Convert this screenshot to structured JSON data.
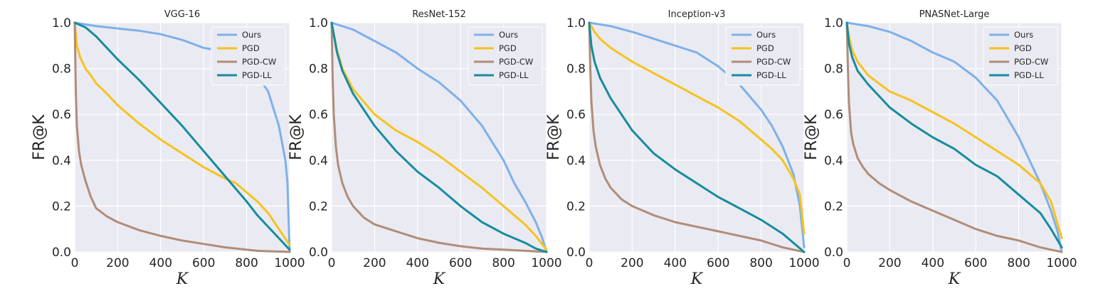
{
  "chart_data": [
    {
      "type": "line",
      "title": "VGG-16",
      "xlabel": "K",
      "ylabel": "FR@K",
      "xlim": [
        0,
        1000
      ],
      "ylim": [
        0.0,
        1.0
      ],
      "xticks": [
        "0",
        "200",
        "400",
        "600",
        "800",
        "1000"
      ],
      "yticks": [
        "0.0",
        "0.2",
        "0.4",
        "0.6",
        "0.8",
        "1.0"
      ],
      "grid": true,
      "legend_position": "top-right",
      "series": [
        {
          "name": "Ours",
          "color": "#7eb0ea",
          "x": [
            0,
            100,
            200,
            300,
            400,
            500,
            600,
            700,
            750,
            800,
            850,
            900,
            950,
            980,
            990,
            1000
          ],
          "y": [
            1.0,
            0.985,
            0.975,
            0.965,
            0.95,
            0.925,
            0.89,
            0.875,
            0.86,
            0.8,
            0.77,
            0.7,
            0.55,
            0.4,
            0.3,
            0.0
          ]
        },
        {
          "name": "PGD",
          "color": "#f6c31d",
          "x": [
            0,
            10,
            25,
            50,
            75,
            100,
            150,
            200,
            300,
            400,
            500,
            600,
            700,
            750,
            800,
            850,
            900,
            950,
            1000
          ],
          "y": [
            1.0,
            0.9,
            0.85,
            0.8,
            0.77,
            0.735,
            0.69,
            0.64,
            0.56,
            0.49,
            0.43,
            0.37,
            0.32,
            0.3,
            0.26,
            0.22,
            0.17,
            0.1,
            0.03
          ]
        },
        {
          "name": "PGD-CW",
          "color": "#b08d78",
          "x": [
            0,
            5,
            10,
            20,
            30,
            50,
            75,
            100,
            150,
            200,
            300,
            400,
            500,
            600,
            700,
            800,
            850,
            900,
            950,
            1000
          ],
          "y": [
            1.0,
            0.7,
            0.55,
            0.44,
            0.38,
            0.31,
            0.24,
            0.19,
            0.155,
            0.13,
            0.095,
            0.07,
            0.05,
            0.035,
            0.02,
            0.01,
            0.005,
            0.003,
            0.002,
            0.0
          ]
        },
        {
          "name": "PGD-LL",
          "color": "#168c9f",
          "x": [
            0,
            50,
            100,
            200,
            300,
            400,
            500,
            600,
            700,
            800,
            850,
            900,
            950,
            1000
          ],
          "y": [
            1.0,
            0.98,
            0.94,
            0.84,
            0.75,
            0.65,
            0.55,
            0.44,
            0.33,
            0.22,
            0.16,
            0.11,
            0.06,
            0.01
          ]
        }
      ]
    },
    {
      "type": "line",
      "title": "ResNet-152",
      "xlabel": "K",
      "ylabel": "FR@K",
      "xlim": [
        0,
        1000
      ],
      "ylim": [
        0.0,
        1.0
      ],
      "xticks": [
        "0",
        "200",
        "400",
        "600",
        "800",
        "1000"
      ],
      "yticks": [
        "0.0",
        "0.2",
        "0.4",
        "0.6",
        "0.8",
        "1.0"
      ],
      "grid": true,
      "legend_position": "top-right",
      "series": [
        {
          "name": "Ours",
          "color": "#7eb0ea",
          "x": [
            0,
            100,
            200,
            300,
            400,
            500,
            600,
            700,
            800,
            850,
            900,
            950,
            980,
            1000
          ],
          "y": [
            1.0,
            0.97,
            0.92,
            0.87,
            0.8,
            0.74,
            0.66,
            0.55,
            0.4,
            0.3,
            0.22,
            0.13,
            0.06,
            0.0
          ]
        },
        {
          "name": "PGD",
          "color": "#f6c31d",
          "x": [
            0,
            25,
            50,
            100,
            200,
            300,
            400,
            500,
            600,
            700,
            800,
            900,
            950,
            1000
          ],
          "y": [
            1.0,
            0.88,
            0.8,
            0.71,
            0.6,
            0.53,
            0.48,
            0.42,
            0.35,
            0.28,
            0.2,
            0.12,
            0.07,
            0.01
          ]
        },
        {
          "name": "PGD-CW",
          "color": "#b08d78",
          "x": [
            0,
            5,
            10,
            20,
            30,
            50,
            75,
            100,
            150,
            200,
            300,
            400,
            500,
            600,
            700,
            800,
            900,
            1000
          ],
          "y": [
            1.0,
            0.75,
            0.6,
            0.46,
            0.38,
            0.3,
            0.24,
            0.2,
            0.15,
            0.12,
            0.09,
            0.06,
            0.04,
            0.025,
            0.015,
            0.01,
            0.005,
            0.0
          ]
        },
        {
          "name": "PGD-LL",
          "color": "#168c9f",
          "x": [
            0,
            25,
            50,
            100,
            200,
            300,
            400,
            500,
            600,
            700,
            800,
            900,
            950,
            1000
          ],
          "y": [
            1.0,
            0.87,
            0.79,
            0.69,
            0.55,
            0.44,
            0.35,
            0.28,
            0.2,
            0.13,
            0.08,
            0.04,
            0.015,
            0.0
          ]
        }
      ]
    },
    {
      "type": "line",
      "title": "Inception-v3",
      "xlabel": "K",
      "ylabel": "FR@K",
      "xlim": [
        0,
        1000
      ],
      "ylim": [
        0.0,
        1.0
      ],
      "xticks": [
        "0",
        "200",
        "400",
        "600",
        "800",
        "1000"
      ],
      "yticks": [
        "0.0",
        "0.2",
        "0.4",
        "0.6",
        "0.8",
        "1.0"
      ],
      "grid": true,
      "legend_position": "top-right",
      "series": [
        {
          "name": "Ours",
          "color": "#7eb0ea",
          "x": [
            0,
            100,
            200,
            300,
            400,
            500,
            600,
            700,
            800,
            850,
            900,
            950,
            980,
            1000
          ],
          "y": [
            1.0,
            0.985,
            0.96,
            0.93,
            0.9,
            0.87,
            0.81,
            0.73,
            0.62,
            0.55,
            0.46,
            0.34,
            0.2,
            0.02
          ]
        },
        {
          "name": "PGD",
          "color": "#f6c31d",
          "x": [
            0,
            25,
            50,
            100,
            200,
            300,
            400,
            500,
            600,
            700,
            800,
            850,
            900,
            950,
            980,
            1000
          ],
          "y": [
            1.0,
            0.96,
            0.93,
            0.89,
            0.83,
            0.78,
            0.73,
            0.68,
            0.63,
            0.57,
            0.49,
            0.45,
            0.4,
            0.32,
            0.25,
            0.08
          ]
        },
        {
          "name": "PGD-CW",
          "color": "#b08d78",
          "x": [
            0,
            5,
            10,
            20,
            30,
            50,
            75,
            100,
            150,
            200,
            300,
            400,
            500,
            600,
            700,
            800,
            900,
            950,
            1000
          ],
          "y": [
            1.0,
            0.8,
            0.66,
            0.53,
            0.46,
            0.38,
            0.32,
            0.28,
            0.23,
            0.2,
            0.16,
            0.13,
            0.11,
            0.09,
            0.07,
            0.05,
            0.02,
            0.01,
            0.0
          ]
        },
        {
          "name": "PGD-LL",
          "color": "#168c9f",
          "x": [
            0,
            10,
            25,
            50,
            100,
            200,
            300,
            400,
            500,
            600,
            700,
            800,
            900,
            950,
            1000
          ],
          "y": [
            1.0,
            0.9,
            0.83,
            0.76,
            0.67,
            0.53,
            0.43,
            0.36,
            0.3,
            0.24,
            0.19,
            0.14,
            0.08,
            0.04,
            0.0
          ]
        }
      ]
    },
    {
      "type": "line",
      "title": "PNASNet-Large",
      "xlabel": "K",
      "ylabel": "FR@K",
      "xlim": [
        0,
        1000
      ],
      "ylim": [
        0.0,
        1.0
      ],
      "xticks": [
        "0",
        "200",
        "400",
        "600",
        "800",
        "1000"
      ],
      "yticks": [
        "0.0",
        "0.2",
        "0.4",
        "0.6",
        "0.8",
        "1.0"
      ],
      "grid": true,
      "legend_position": "top-right",
      "series": [
        {
          "name": "Ours",
          "color": "#7eb0ea",
          "x": [
            0,
            100,
            200,
            300,
            400,
            500,
            600,
            700,
            800,
            850,
            900,
            950,
            980,
            1000
          ],
          "y": [
            1.0,
            0.985,
            0.96,
            0.92,
            0.87,
            0.83,
            0.76,
            0.66,
            0.5,
            0.4,
            0.3,
            0.18,
            0.09,
            0.0
          ]
        },
        {
          "name": "PGD",
          "color": "#f6c31d",
          "x": [
            0,
            10,
            25,
            50,
            100,
            200,
            300,
            400,
            500,
            600,
            700,
            800,
            900,
            950,
            1000
          ],
          "y": [
            1.0,
            0.94,
            0.88,
            0.83,
            0.77,
            0.7,
            0.66,
            0.61,
            0.56,
            0.5,
            0.44,
            0.38,
            0.3,
            0.22,
            0.06
          ]
        },
        {
          "name": "PGD-CW",
          "color": "#b08d78",
          "x": [
            0,
            5,
            10,
            20,
            30,
            50,
            75,
            100,
            150,
            200,
            300,
            400,
            500,
            600,
            700,
            800,
            900,
            950,
            1000
          ],
          "y": [
            1.0,
            0.8,
            0.65,
            0.52,
            0.47,
            0.41,
            0.37,
            0.34,
            0.3,
            0.27,
            0.22,
            0.18,
            0.14,
            0.1,
            0.07,
            0.05,
            0.02,
            0.01,
            0.0
          ]
        },
        {
          "name": "PGD-LL",
          "color": "#168c9f",
          "x": [
            0,
            10,
            25,
            50,
            100,
            200,
            300,
            400,
            500,
            600,
            700,
            800,
            900,
            950,
            1000
          ],
          "y": [
            1.0,
            0.91,
            0.85,
            0.79,
            0.73,
            0.63,
            0.56,
            0.5,
            0.45,
            0.38,
            0.33,
            0.25,
            0.17,
            0.1,
            0.02
          ]
        }
      ]
    }
  ]
}
